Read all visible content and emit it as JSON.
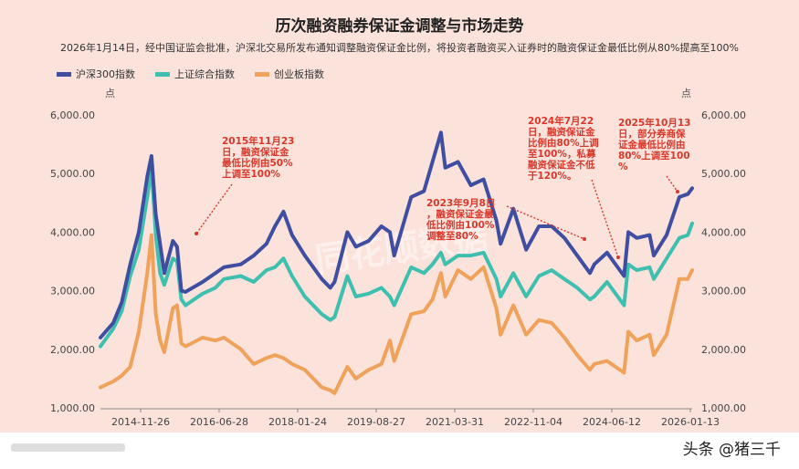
{
  "title": "历次融资融券保证金调整与市场走势",
  "subtitle": "2026年1月14日，经中国证监会批准，沪深北交易所发布通知调整融资保证金比例，将投资者融资买入证券时的融资保证金最低比例从80%提高至100%",
  "footer": "头条 @猪三千",
  "watermark": "同花顺数据",
  "chart_data": {
    "type": "line",
    "unit_left": "点",
    "unit_right": "点",
    "ylim": [
      1000,
      6000
    ],
    "y_ticks": [
      "6,000.00",
      "5,000.00",
      "4,000.00",
      "3,000.00",
      "2,000.00",
      "1,000.00"
    ],
    "x_tick_labels": [
      "2014-11-26",
      "2016-06-28",
      "2018-01-24",
      "2019-08-27",
      "2021-03-31",
      "2022-11-04",
      "2024-06-12",
      "2026-01-13"
    ],
    "x_range": [
      "2014-06",
      "2026-01"
    ],
    "legend_position": "top-left",
    "grid": false,
    "colors": {
      "hs300": "#3f4ea0",
      "shzz": "#3fbfb0",
      "cyb": "#f0a25a",
      "annotation": "#d9372a"
    },
    "series": [
      {
        "name": "沪深300指数",
        "key": "hs300",
        "x": [
          "2014-06",
          "2014-09",
          "2014-11",
          "2015-01",
          "2015-03",
          "2015-05",
          "2015-06",
          "2015-07",
          "2015-08",
          "2015-09",
          "2015-11",
          "2015-12",
          "2016-01",
          "2016-02",
          "2016-06",
          "2016-09",
          "2016-11",
          "2017-03",
          "2017-06",
          "2017-09",
          "2017-11",
          "2018-01",
          "2018-03",
          "2018-06",
          "2018-10",
          "2018-12",
          "2019-01",
          "2019-04",
          "2019-06",
          "2019-09",
          "2019-12",
          "2020-02",
          "2020-03",
          "2020-07",
          "2020-10",
          "2020-12",
          "2021-02",
          "2021-03",
          "2021-06",
          "2021-09",
          "2021-12",
          "2022-03",
          "2022-04",
          "2022-07",
          "2022-10",
          "2023-01",
          "2023-04",
          "2023-07",
          "2023-10",
          "2024-01",
          "2024-02",
          "2024-05",
          "2024-09",
          "2024-10",
          "2024-12",
          "2025-03",
          "2025-04",
          "2025-07",
          "2025-10",
          "2025-12",
          "2026-01"
        ],
        "values": [
          2200,
          2450,
          2800,
          3450,
          4000,
          4950,
          5300,
          4300,
          3800,
          3300,
          3850,
          3750,
          3000,
          2980,
          3150,
          3300,
          3400,
          3450,
          3600,
          3800,
          4100,
          4350,
          3950,
          3600,
          3200,
          3050,
          3150,
          4000,
          3750,
          3850,
          4100,
          4000,
          3600,
          4600,
          4700,
          5200,
          5700,
          5100,
          5200,
          4800,
          4900,
          4200,
          3800,
          4400,
          3700,
          4100,
          4100,
          3900,
          3600,
          3300,
          3450,
          3650,
          3250,
          4000,
          3900,
          3950,
          3600,
          3950,
          4600,
          4650,
          4750
        ]
      },
      {
        "name": "上证综合指数",
        "key": "shzz",
        "x": [
          "2014-06",
          "2014-09",
          "2014-11",
          "2015-01",
          "2015-03",
          "2015-05",
          "2015-06",
          "2015-07",
          "2015-08",
          "2015-09",
          "2015-11",
          "2015-12",
          "2016-01",
          "2016-02",
          "2016-06",
          "2016-09",
          "2016-11",
          "2017-03",
          "2017-06",
          "2017-09",
          "2017-11",
          "2018-01",
          "2018-03",
          "2018-06",
          "2018-10",
          "2018-12",
          "2019-01",
          "2019-04",
          "2019-06",
          "2019-09",
          "2019-12",
          "2020-02",
          "2020-03",
          "2020-07",
          "2020-10",
          "2020-12",
          "2021-02",
          "2021-03",
          "2021-06",
          "2021-09",
          "2021-12",
          "2022-03",
          "2022-04",
          "2022-07",
          "2022-10",
          "2023-01",
          "2023-04",
          "2023-07",
          "2023-10",
          "2024-01",
          "2024-02",
          "2024-05",
          "2024-09",
          "2024-10",
          "2024-12",
          "2025-03",
          "2025-04",
          "2025-07",
          "2025-10",
          "2025-12",
          "2026-01"
        ],
        "values": [
          2050,
          2350,
          2650,
          3250,
          3700,
          4600,
          5100,
          3950,
          3300,
          3100,
          3550,
          3500,
          2850,
          2750,
          2950,
          3050,
          3200,
          3250,
          3150,
          3350,
          3400,
          3550,
          3250,
          2900,
          2600,
          2500,
          2550,
          3250,
          2900,
          2950,
          3050,
          2900,
          2750,
          3400,
          3300,
          3450,
          3650,
          3450,
          3600,
          3600,
          3650,
          3200,
          2900,
          3300,
          2900,
          3250,
          3350,
          3200,
          3050,
          2850,
          2900,
          3150,
          2750,
          3450,
          3350,
          3400,
          3200,
          3550,
          3900,
          3950,
          4150
        ]
      },
      {
        "name": "创业板指数",
        "key": "cyb",
        "x": [
          "2014-06",
          "2014-09",
          "2014-11",
          "2015-01",
          "2015-03",
          "2015-05",
          "2015-06",
          "2015-07",
          "2015-08",
          "2015-09",
          "2015-11",
          "2015-12",
          "2016-01",
          "2016-02",
          "2016-06",
          "2016-09",
          "2016-11",
          "2017-03",
          "2017-06",
          "2017-09",
          "2017-11",
          "2018-01",
          "2018-03",
          "2018-06",
          "2018-10",
          "2018-12",
          "2019-01",
          "2019-04",
          "2019-06",
          "2019-09",
          "2019-12",
          "2020-02",
          "2020-03",
          "2020-07",
          "2020-10",
          "2020-12",
          "2021-02",
          "2021-03",
          "2021-06",
          "2021-09",
          "2021-12",
          "2022-03",
          "2022-04",
          "2022-07",
          "2022-10",
          "2023-01",
          "2023-04",
          "2023-07",
          "2023-10",
          "2024-01",
          "2024-02",
          "2024-05",
          "2024-09",
          "2024-10",
          "2024-12",
          "2025-03",
          "2025-04",
          "2025-07",
          "2025-10",
          "2025-12",
          "2026-01"
        ],
        "values": [
          1350,
          1450,
          1550,
          1700,
          2300,
          3300,
          3950,
          2600,
          2150,
          1950,
          2700,
          2750,
          2100,
          2050,
          2200,
          2150,
          2200,
          2000,
          1750,
          1850,
          1900,
          1850,
          1750,
          1650,
          1350,
          1300,
          1250,
          1700,
          1500,
          1650,
          1750,
          2150,
          1800,
          2600,
          2650,
          2850,
          3300,
          2900,
          3350,
          3200,
          3400,
          2700,
          2250,
          2750,
          2250,
          2500,
          2450,
          2200,
          1900,
          1650,
          1750,
          1800,
          1600,
          2300,
          2150,
          2250,
          1900,
          2250,
          3200,
          3200,
          3350
        ]
      }
    ],
    "annotations": [
      {
        "key": "a2015",
        "lines": [
          "2015年11月23",
          "日，融资保证金",
          "最低比例由50%",
          "上调至100%"
        ],
        "date": "2015-11"
      },
      {
        "key": "a2023",
        "lines": [
          "2023年9月8日",
          "，融资保证金最",
          "低比例由100%",
          "调整至80%"
        ],
        "date": "2023-09"
      },
      {
        "key": "a2024",
        "lines": [
          "2024年7月22",
          "日，融资保证金",
          "比例由80%上调",
          "至100%，私募",
          "融资保证金不低",
          "于120%。"
        ],
        "date": "2024-07"
      },
      {
        "key": "a2025",
        "lines": [
          "2025年10月13",
          "日，部分券商保",
          "证金最低比例由",
          "80%上调至100",
          "%"
        ],
        "date": "2025-10"
      }
    ]
  }
}
